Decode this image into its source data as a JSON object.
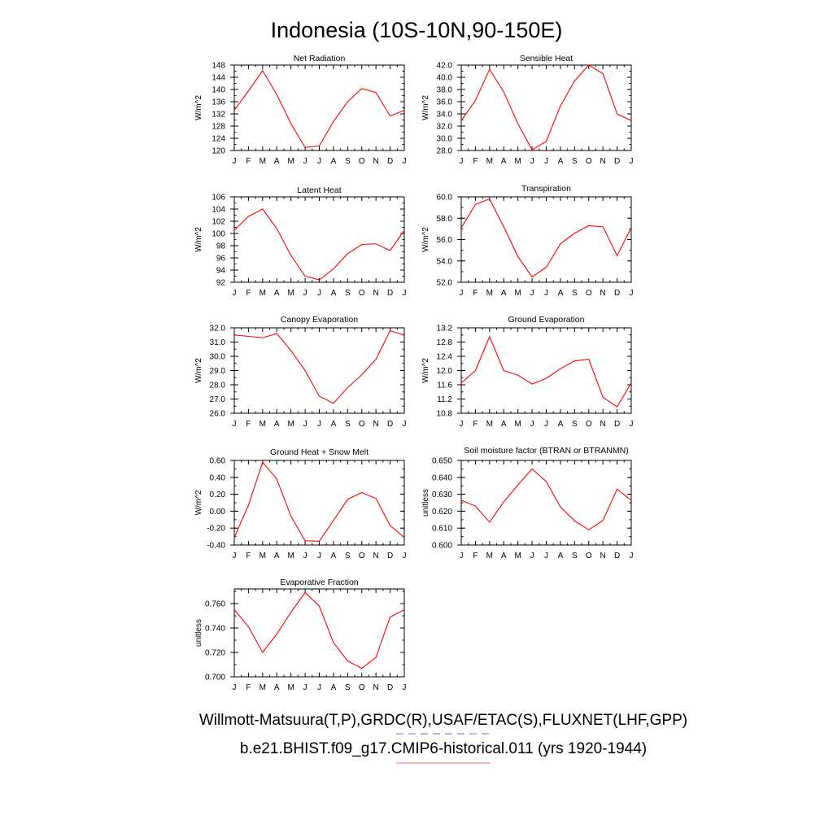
{
  "page": {
    "title": "Indonesia (10S-10N,90-150E)",
    "legend": [
      {
        "label": "Willmott-Matsuura(T,P),GRDC(R),USAF/ETAC(S),FLUXNET(LHF,GPP)",
        "color": "#6a6aff",
        "dash": "dashed"
      },
      {
        "label": "b.e21.BHIST.f09_g17.CMIP6-historical.011 (yrs 1920-1944)",
        "color": "#ff6a6a",
        "dash": "solid"
      }
    ]
  },
  "chart_data": [
    {
      "type": "line",
      "title": "Net Radiation",
      "ylabel": "W/m^2",
      "x": [
        "J",
        "F",
        "M",
        "A",
        "M",
        "J",
        "J",
        "A",
        "S",
        "O",
        "N",
        "D",
        "J"
      ],
      "ylim": [
        120,
        148
      ],
      "yticks": [
        120,
        124,
        128,
        132,
        136,
        140,
        144,
        148
      ],
      "ytick_labels": [
        "120",
        "124",
        "128",
        "132",
        "136",
        "140",
        "144",
        "148"
      ],
      "series": [
        {
          "values": [
            133.2,
            139.5,
            146.2,
            138.3,
            128.8,
            121.0,
            121.5,
            129.5,
            136.0,
            140.3,
            139.0,
            131.3,
            133.2
          ]
        }
      ]
    },
    {
      "type": "line",
      "title": "Sensible Heat",
      "ylabel": "W/m^2",
      "x": [
        "J",
        "F",
        "M",
        "A",
        "M",
        "J",
        "J",
        "A",
        "S",
        "O",
        "N",
        "D",
        "J"
      ],
      "ylim": [
        28.0,
        42.0
      ],
      "yticks": [
        28,
        30,
        32,
        34,
        36,
        38,
        40,
        42
      ],
      "ytick_labels": [
        "28.0",
        "30.0",
        "32.0",
        "34.0",
        "36.0",
        "38.0",
        "40.0",
        "42.0"
      ],
      "series": [
        {
          "values": [
            32.9,
            36.2,
            41.3,
            37.6,
            32.4,
            28.1,
            29.5,
            35.3,
            39.4,
            42.0,
            40.6,
            34.0,
            32.9
          ]
        }
      ]
    },
    {
      "type": "line",
      "title": "Latent Heat",
      "ylabel": "W/m^2",
      "x": [
        "J",
        "F",
        "M",
        "A",
        "M",
        "J",
        "J",
        "A",
        "S",
        "O",
        "N",
        "D",
        "J"
      ],
      "ylim": [
        92,
        106
      ],
      "yticks": [
        92,
        94,
        96,
        98,
        100,
        102,
        104,
        106
      ],
      "ytick_labels": [
        "92",
        "94",
        "96",
        "98",
        "100",
        "102",
        "104",
        "106"
      ],
      "series": [
        {
          "values": [
            100.5,
            102.8,
            104.0,
            100.8,
            96.4,
            93.0,
            92.4,
            94.2,
            96.7,
            98.2,
            98.3,
            97.2,
            100.5
          ]
        }
      ]
    },
    {
      "type": "line",
      "title": "Transpiration",
      "ylabel": "W/m^2",
      "x": [
        "J",
        "F",
        "M",
        "A",
        "M",
        "J",
        "J",
        "A",
        "S",
        "O",
        "N",
        "D",
        "J"
      ],
      "ylim": [
        52.0,
        60.0
      ],
      "yticks": [
        52,
        54,
        56,
        58,
        60
      ],
      "ytick_labels": [
        "52.0",
        "54.0",
        "56.0",
        "58.0",
        "60.0"
      ],
      "series": [
        {
          "values": [
            57.1,
            59.3,
            59.8,
            57.2,
            54.4,
            52.5,
            53.4,
            55.6,
            56.6,
            57.3,
            57.2,
            54.5,
            57.1
          ]
        }
      ]
    },
    {
      "type": "line",
      "title": "Canopy Evaporation",
      "ylabel": "W/m^2",
      "x": [
        "J",
        "F",
        "M",
        "A",
        "M",
        "J",
        "J",
        "A",
        "S",
        "O",
        "N",
        "D",
        "J"
      ],
      "ylim": [
        26.0,
        32.0
      ],
      "yticks": [
        26,
        27,
        28,
        29,
        30,
        31,
        32
      ],
      "ytick_labels": [
        "26.0",
        "27.0",
        "28.0",
        "29.0",
        "30.0",
        "31.0",
        "32.0"
      ],
      "series": [
        {
          "values": [
            31.5,
            31.4,
            31.3,
            31.6,
            30.4,
            29.0,
            27.2,
            26.7,
            27.8,
            28.7,
            29.8,
            31.8,
            31.5
          ]
        }
      ]
    },
    {
      "type": "line",
      "title": "Ground Evaporation",
      "ylabel": "W/m^2",
      "x": [
        "J",
        "F",
        "M",
        "A",
        "M",
        "J",
        "J",
        "A",
        "S",
        "O",
        "N",
        "D",
        "J"
      ],
      "ylim": [
        10.8,
        13.2
      ],
      "yticks": [
        10.8,
        11.2,
        11.6,
        12.0,
        12.4,
        12.8,
        13.2
      ],
      "ytick_labels": [
        "10.8",
        "11.2",
        "11.6",
        "12.0",
        "12.4",
        "12.8",
        "13.2"
      ],
      "series": [
        {
          "values": [
            11.65,
            12.0,
            12.95,
            12.0,
            11.87,
            11.62,
            11.78,
            12.05,
            12.27,
            12.32,
            11.25,
            10.98,
            11.65
          ]
        }
      ]
    },
    {
      "type": "line",
      "title": "Ground Heat + Snow Melt",
      "ylabel": "W/m^2",
      "x": [
        "J",
        "F",
        "M",
        "A",
        "M",
        "J",
        "J",
        "A",
        "S",
        "O",
        "N",
        "D",
        "J"
      ],
      "ylim": [
        -0.4,
        0.6
      ],
      "yticks": [
        -0.4,
        -0.2,
        0.0,
        0.2,
        0.4,
        0.6
      ],
      "ytick_labels": [
        "-0.40",
        "-0.20",
        "0.00",
        "0.20",
        "0.40",
        "0.60"
      ],
      "series": [
        {
          "values": [
            -0.31,
            0.07,
            0.58,
            0.38,
            -0.06,
            -0.35,
            -0.355,
            -0.11,
            0.14,
            0.22,
            0.15,
            -0.17,
            -0.31
          ]
        }
      ]
    },
    {
      "type": "line",
      "title": "Soil moisture factor (BTRAN or BTRANMN)",
      "ylabel": "unitless",
      "x": [
        "J",
        "F",
        "M",
        "A",
        "M",
        "J",
        "J",
        "A",
        "S",
        "O",
        "N",
        "D",
        "J"
      ],
      "ylim": [
        0.6,
        0.65
      ],
      "yticks": [
        0.6,
        0.61,
        0.62,
        0.63,
        0.64,
        0.65
      ],
      "ytick_labels": [
        "0.600",
        "0.610",
        "0.620",
        "0.630",
        "0.640",
        "0.650"
      ],
      "series": [
        {
          "values": [
            0.6265,
            0.623,
            0.6135,
            0.6255,
            0.6355,
            0.645,
            0.6375,
            0.6225,
            0.6143,
            0.609,
            0.6145,
            0.633,
            0.6265
          ]
        }
      ]
    },
    {
      "type": "line",
      "title": "Evaporative Fraction",
      "ylabel": "unitless",
      "x": [
        "J",
        "F",
        "M",
        "A",
        "M",
        "J",
        "J",
        "A",
        "S",
        "O",
        "N",
        "D",
        "J"
      ],
      "ylim": [
        0.7,
        0.772
      ],
      "yticks": [
        0.7,
        0.72,
        0.74,
        0.76
      ],
      "ytick_labels": [
        "0.700",
        "0.720",
        "0.740",
        "0.760"
      ],
      "series": [
        {
          "values": [
            0.755,
            0.741,
            0.72,
            0.735,
            0.753,
            0.769,
            0.758,
            0.728,
            0.713,
            0.707,
            0.716,
            0.749,
            0.755
          ]
        }
      ]
    }
  ]
}
